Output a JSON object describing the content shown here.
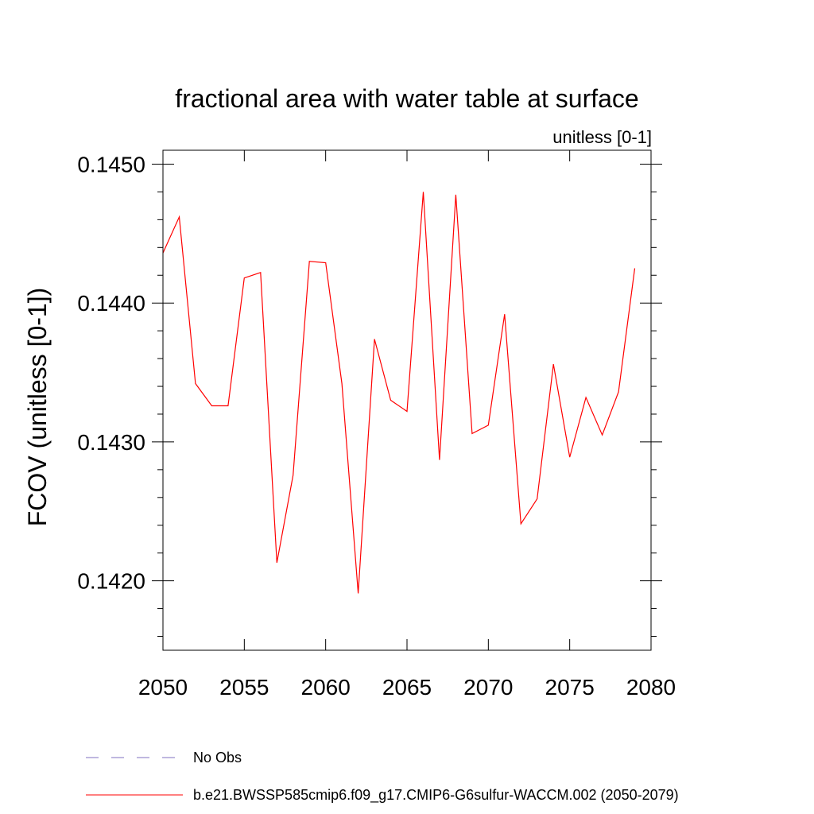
{
  "chart_data": {
    "type": "line",
    "title": "fractional area with water table at surface",
    "subtitle": "unitless [0-1]",
    "ylabel": "FCOV  (unitless [0-1])",
    "xlabel": "",
    "xlim": [
      2050,
      2080
    ],
    "ylim": [
      0.1415,
      0.1451
    ],
    "x_ticks": [
      2050,
      2055,
      2060,
      2065,
      2070,
      2075,
      2080
    ],
    "x_tick_labels": [
      "2050",
      "2055",
      "2060",
      "2065",
      "2070",
      "2075",
      "2080"
    ],
    "y_ticks": [
      0.142,
      0.143,
      0.144,
      0.145
    ],
    "y_tick_labels": [
      "0.1420",
      "0.1430",
      "0.1440",
      "0.1450"
    ],
    "y_minor_step": 0.0002,
    "grid": false,
    "legend_position": "bottom",
    "series": [
      {
        "name": "b.e21.BWSSP585cmip6.f09_g17.CMIP6-G6sulfur-WACCM.002 (2050-2079)",
        "color": "#ff0000",
        "style": "solid",
        "x": [
          2050,
          2051,
          2052,
          2053,
          2054,
          2055,
          2056,
          2057,
          2058,
          2059,
          2060,
          2061,
          2062,
          2063,
          2064,
          2065,
          2066,
          2067,
          2068,
          2069,
          2070,
          2071,
          2072,
          2073,
          2074,
          2075,
          2076,
          2077,
          2078,
          2079
        ],
        "values": [
          0.14436,
          0.14462,
          0.14342,
          0.14326,
          0.14326,
          0.14418,
          0.14422,
          0.14213,
          0.14276,
          0.1443,
          0.14429,
          0.14342,
          0.14191,
          0.14374,
          0.1433,
          0.14322,
          0.1448,
          0.14287,
          0.14478,
          0.14306,
          0.14312,
          0.14392,
          0.14241,
          0.14259,
          0.14356,
          0.14289,
          0.14332,
          0.14305,
          0.14336,
          0.14425
        ]
      }
    ],
    "legend": [
      {
        "label": "No Obs",
        "color": "#8070c0",
        "style": "dashed"
      },
      {
        "label": "b.e21.BWSSP585cmip6.f09_g17.CMIP6-G6sulfur-WACCM.002 (2050-2079)",
        "color": "#ff0000",
        "style": "solid"
      }
    ]
  }
}
